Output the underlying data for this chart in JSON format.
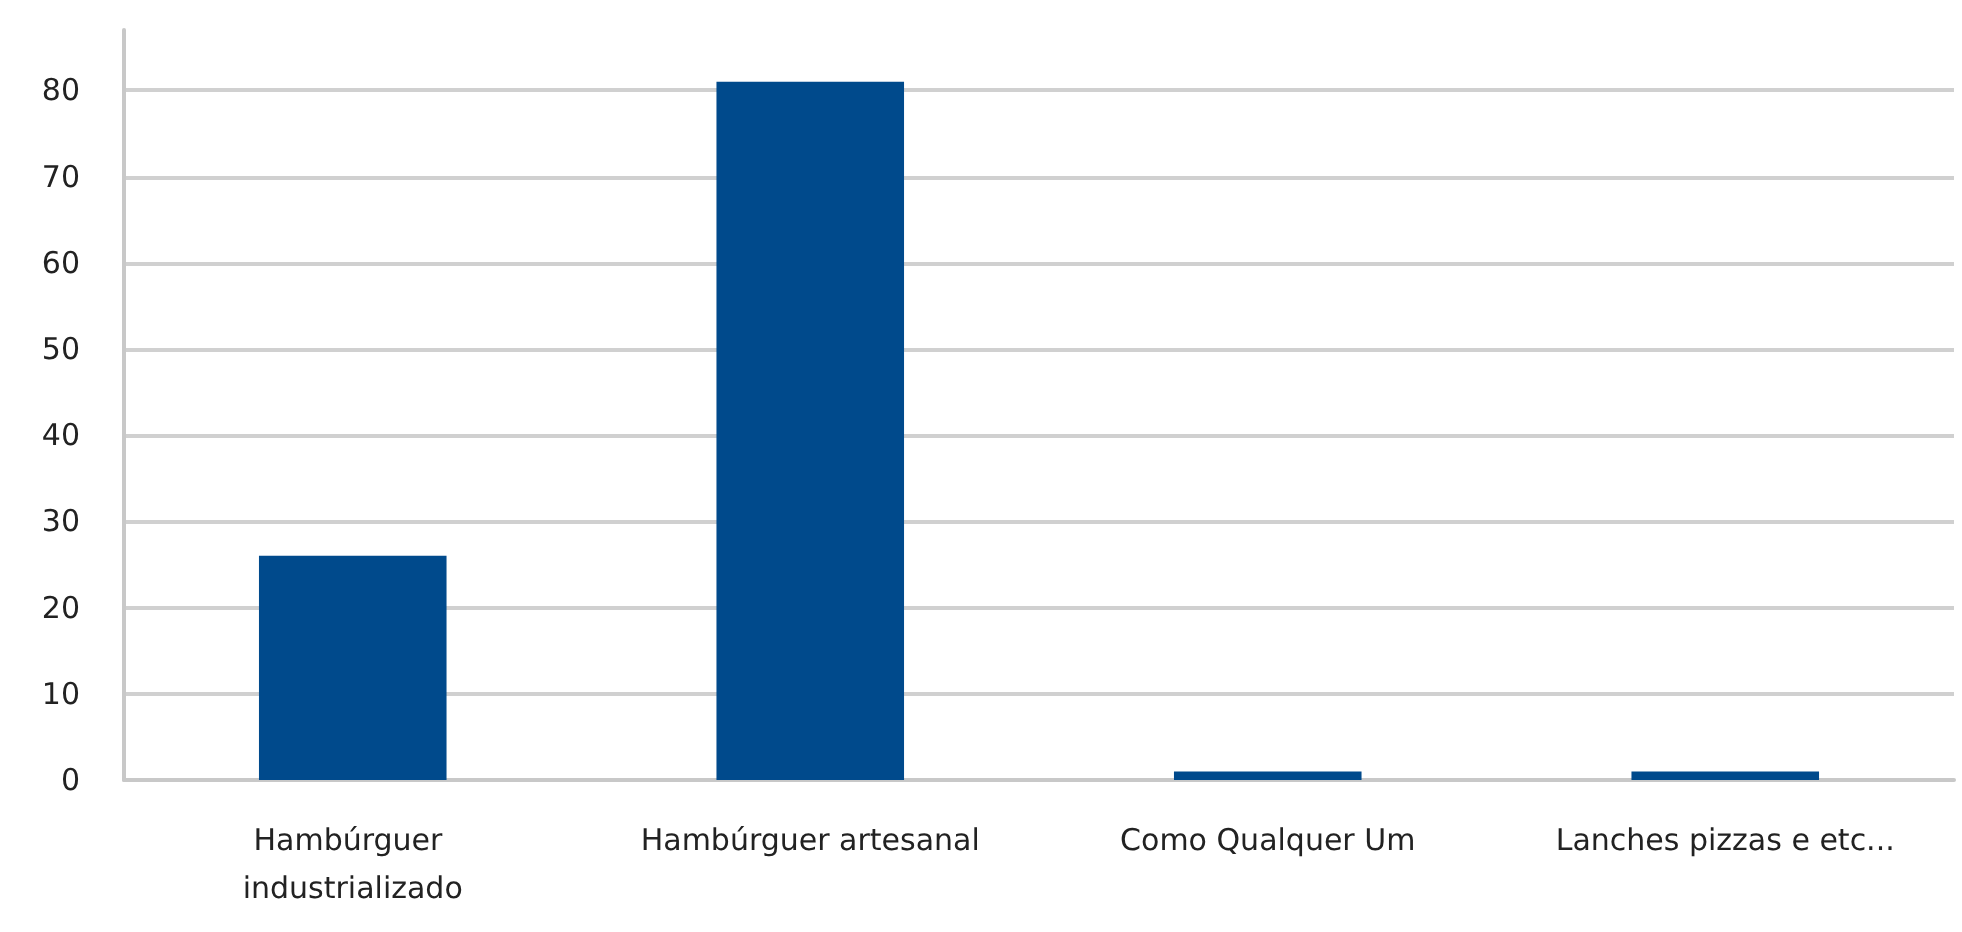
{
  "chart_data": {
    "type": "bar",
    "categories": [
      "Hambúrguer industrializado",
      "Hambúrguer artesanal",
      "Como Qualquer Um",
      "Lanches pizzas e etc..."
    ],
    "values": [
      26,
      81,
      1,
      1
    ],
    "color": "#004a8c",
    "ylim": [
      0,
      87
    ],
    "yticks": [
      0,
      10,
      20,
      30,
      40,
      50,
      60,
      70,
      80
    ],
    "grid": "y"
  }
}
